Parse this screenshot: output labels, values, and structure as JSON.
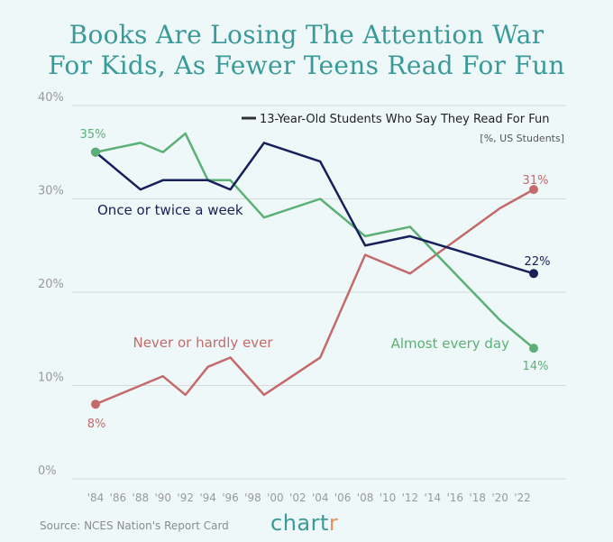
{
  "title": {
    "line1": "Books Are Losing The Attention War",
    "line2": "For Kids, As Fewer Teens Read For Fun"
  },
  "legend": {
    "label": "13-Year-Old Students Who Say They Read For Fun",
    "unit": "[%, US Students]"
  },
  "source": "Source: NCES Nation's Report Card",
  "brand": {
    "main": "chart",
    "accent": "r"
  },
  "colors": {
    "background": "#eef8f8",
    "title": "#3a9a9a",
    "navy": "#17205a",
    "green": "#5bb076",
    "red": "#c46a6b",
    "grid": "#d7dada"
  },
  "chart_data": {
    "type": "line",
    "title": "Books Are Losing The Attention War For Kids, As Fewer Teens Read For Fun",
    "xlabel": "",
    "ylabel": "",
    "xlim": [
      1984,
      2023
    ],
    "ylim": [
      0,
      40
    ],
    "grid": true,
    "legend_position": "top-right",
    "x_ticks": [
      {
        "value": 1984,
        "label": "'84"
      },
      {
        "value": 1986,
        "label": "'86"
      },
      {
        "value": 1988,
        "label": "'88"
      },
      {
        "value": 1990,
        "label": "'90"
      },
      {
        "value": 1992,
        "label": "'92"
      },
      {
        "value": 1994,
        "label": "'94"
      },
      {
        "value": 1996,
        "label": "'96"
      },
      {
        "value": 1998,
        "label": "'98"
      },
      {
        "value": 2000,
        "label": "'00"
      },
      {
        "value": 2002,
        "label": "'02"
      },
      {
        "value": 2004,
        "label": "'04"
      },
      {
        "value": 2006,
        "label": "'06"
      },
      {
        "value": 2008,
        "label": "'08"
      },
      {
        "value": 2010,
        "label": "'10"
      },
      {
        "value": 2012,
        "label": "'12"
      },
      {
        "value": 2014,
        "label": "'14"
      },
      {
        "value": 2016,
        "label": "'16"
      },
      {
        "value": 2018,
        "label": "'18"
      },
      {
        "value": 2020,
        "label": "'20"
      },
      {
        "value": 2022,
        "label": "'22"
      }
    ],
    "y_ticks": [
      {
        "value": 0,
        "label": "0%"
      },
      {
        "value": 10,
        "label": "10%"
      },
      {
        "value": 20,
        "label": "20%"
      },
      {
        "value": 30,
        "label": "30%"
      },
      {
        "value": 40,
        "label": "40%"
      }
    ],
    "series": [
      {
        "name": "Once or twice a week",
        "color": "#17205a",
        "x": [
          1984,
          1988,
          1990,
          1992,
          1994,
          1996,
          1999,
          2004,
          2008,
          2012,
          2023
        ],
        "y": [
          35,
          31,
          32,
          32,
          32,
          31,
          36,
          34,
          25,
          26,
          22
        ],
        "start_label": "",
        "end_label": "22%"
      },
      {
        "name": "Almost every day",
        "color": "#5bb076",
        "x": [
          1984,
          1988,
          1990,
          1992,
          1994,
          1996,
          1999,
          2004,
          2008,
          2012,
          2020,
          2023
        ],
        "y": [
          35,
          36,
          35,
          37,
          32,
          32,
          28,
          30,
          26,
          27,
          17,
          14
        ],
        "start_label": "35%",
        "end_label": "14%"
      },
      {
        "name": "Never or hardly ever",
        "color": "#c46a6b",
        "x": [
          1984,
          1988,
          1990,
          1992,
          1994,
          1996,
          1999,
          2004,
          2008,
          2012,
          2020,
          2023
        ],
        "y": [
          8,
          10,
          11,
          9,
          12,
          13,
          9,
          13,
          24,
          22,
          29,
          31
        ],
        "start_label": "8%",
        "end_label": "31%"
      }
    ]
  }
}
